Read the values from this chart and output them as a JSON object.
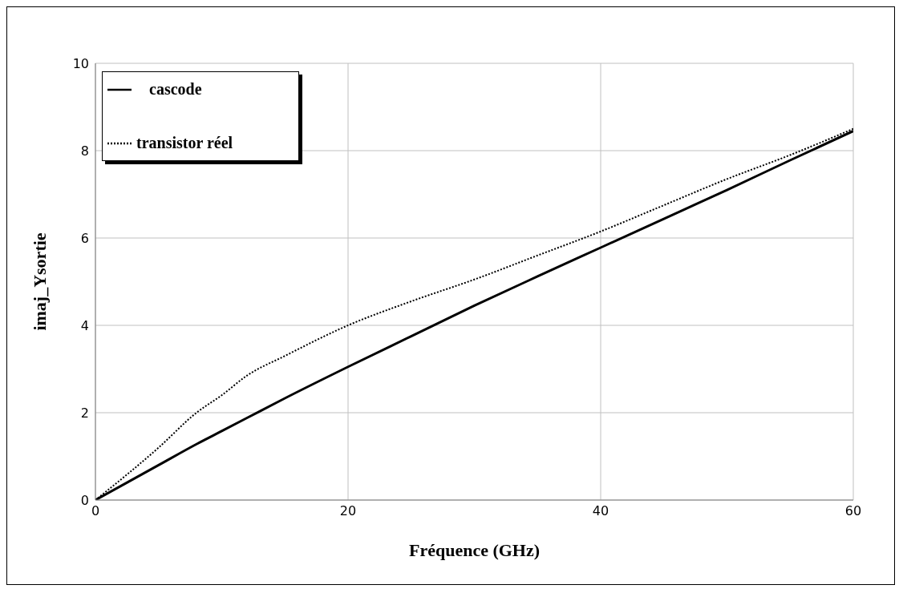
{
  "chart_data": {
    "type": "line",
    "xlabel": "Fréquence (GHz)",
    "ylabel": "imaj_Ysortie",
    "x": [
      0,
      5,
      8,
      10,
      12,
      15,
      20,
      25,
      30,
      35,
      40,
      45,
      50,
      55,
      60
    ],
    "series": [
      {
        "name": "cascode",
        "color": "#000000",
        "line_style": "solid",
        "values": [
          0,
          0.8,
          1.28,
          1.58,
          1.88,
          2.33,
          3.05,
          3.75,
          4.45,
          5.12,
          5.78,
          6.44,
          7.1,
          7.78,
          8.45
        ]
      },
      {
        "name": "transistor réel",
        "color": "#000000",
        "line_style": "dotted",
        "values": [
          0,
          1.2,
          2.0,
          2.4,
          2.85,
          3.3,
          4.0,
          4.55,
          5.05,
          5.6,
          6.15,
          6.75,
          7.35,
          7.9,
          8.5
        ]
      }
    ],
    "xlim": [
      0,
      60
    ],
    "xticks": [
      0,
      20,
      40,
      60
    ],
    "ylim": [
      0,
      10
    ],
    "yticks": [
      0,
      2,
      4,
      6,
      8,
      10
    ],
    "grid": true,
    "legend": "top left",
    "marker": "none"
  }
}
